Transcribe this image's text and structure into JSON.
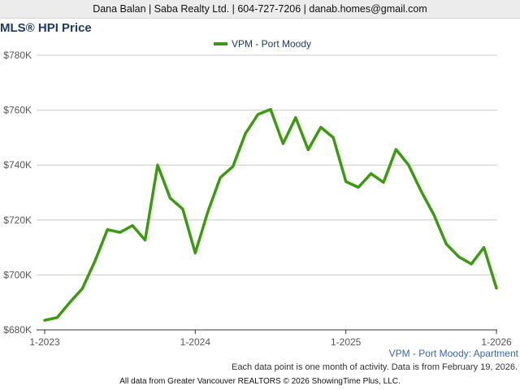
{
  "header": {
    "contact": "Dana Balan | Saba Realty Ltd. | 604-727-7206 | danab.homes@gmail.com"
  },
  "footer": {
    "series_caption": "VPM - Port Moody: Apartment",
    "note": "Each data point is one month of activity. Data is from February 19, 2026.",
    "source": "All data from Greater Vancouver REALTORS © 2026 ShowingTime Plus, LLC."
  },
  "colors": {
    "series": "#3c9a0e",
    "grid": "#c8c8c8",
    "axis": "#333333"
  },
  "chart_data": {
    "type": "line",
    "title": "MLS® HPI Price",
    "xlabel": "",
    "ylabel": "",
    "ylim": [
      680000,
      780000
    ],
    "y_ticks": [
      680000,
      700000,
      720000,
      740000,
      760000,
      780000
    ],
    "y_tick_labels": [
      "$680K",
      "$700K",
      "$720K",
      "$740K",
      "$760K",
      "$780K"
    ],
    "x_ticks": [
      "1-2023",
      "1-2024",
      "1-2025",
      "1-2026"
    ],
    "grid": true,
    "legend_position": "top-center",
    "series": [
      {
        "name": "VPM - Port Moody",
        "x": [
          "2023-01",
          "2023-02",
          "2023-03",
          "2023-04",
          "2023-05",
          "2023-06",
          "2023-07",
          "2023-08",
          "2023-09",
          "2023-10",
          "2023-11",
          "2023-12",
          "2024-01",
          "2024-02",
          "2024-03",
          "2024-04",
          "2024-05",
          "2024-06",
          "2024-07",
          "2024-08",
          "2024-09",
          "2024-10",
          "2024-11",
          "2024-12",
          "2025-01",
          "2025-02",
          "2025-03",
          "2025-04",
          "2025-05",
          "2025-06",
          "2025-07",
          "2025-08",
          "2025-09",
          "2025-10",
          "2025-11",
          "2025-12",
          "2026-01"
        ],
        "values": [
          683500,
          684500,
          690000,
          695000,
          705000,
          716500,
          715500,
          718000,
          712700,
          740000,
          728000,
          724000,
          708000,
          723000,
          735500,
          739500,
          751500,
          758500,
          760300,
          747800,
          757300,
          745600,
          753800,
          750000,
          734000,
          731900,
          736900,
          733700,
          745700,
          740000,
          730500,
          722000,
          711300,
          706600,
          704000,
          710000,
          695200
        ]
      }
    ]
  }
}
